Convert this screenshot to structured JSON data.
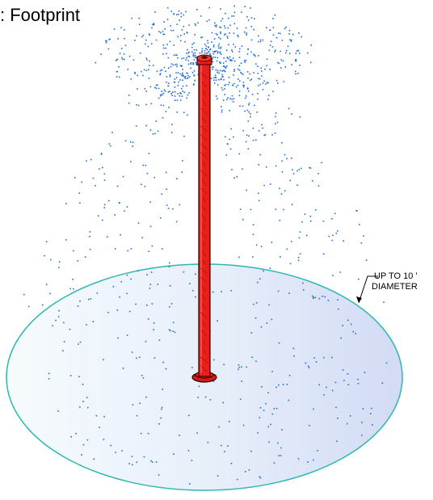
{
  "title": ": Footprint",
  "annotation": {
    "line1": "UP TO 10 '",
    "line2": "DIAMETER"
  },
  "colors": {
    "spray": "#1f6fd6",
    "pole": "#e8201c",
    "pole_outline": "#3a0000",
    "footprint_edge": "#2ab8b0",
    "footprint_fill_light": "#f4fafd",
    "footprint_fill_dark": "#d4dcf5"
  }
}
